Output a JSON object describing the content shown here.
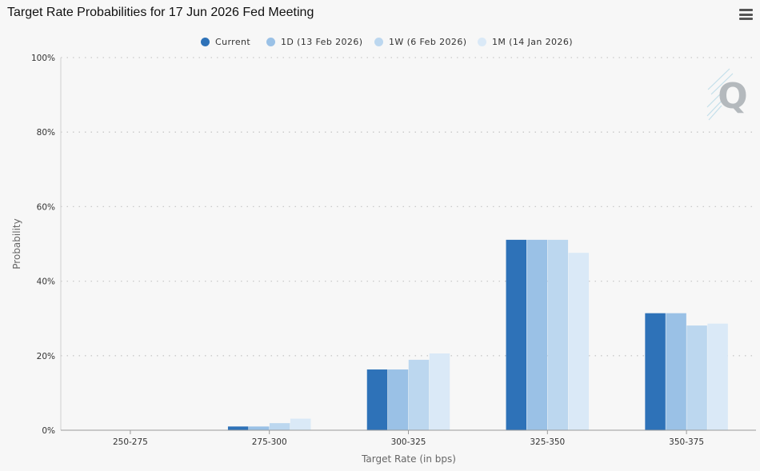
{
  "chart_title": "Target Rate Probabilities for 17 Jun 2026 Fed Meeting",
  "menu_icon": "hamburger-menu-icon",
  "watermark_icon": "q-logo-icon",
  "legend": [
    {
      "label": "Current",
      "color": "#2e72b8"
    },
    {
      "label": "1D (13 Feb 2026)",
      "color": "#9ac1e6"
    },
    {
      "label": "1W (6 Feb 2026)",
      "color": "#bcd7ef"
    },
    {
      "label": "1M (14 Jan 2026)",
      "color": "#dae9f7"
    }
  ],
  "chart_data": {
    "type": "bar",
    "title": "Target Rate Probabilities for 17 Jun 2026 Fed Meeting",
    "xlabel": "Target Rate (in bps)",
    "ylabel": "Probability",
    "ylim": [
      0,
      100
    ],
    "yticks": [
      "0%",
      "20%",
      "40%",
      "60%",
      "80%",
      "100%"
    ],
    "grid": true,
    "legend_position": "top",
    "categories": [
      "250-275",
      "275-300",
      "300-325",
      "325-350",
      "350-375"
    ],
    "series": [
      {
        "name": "Current",
        "color": "#2e72b8",
        "values": [
          0,
          1.0,
          16.3,
          51.1,
          31.4
        ]
      },
      {
        "name": "1D (13 Feb 2026)",
        "color": "#9ac1e6",
        "values": [
          0,
          1.0,
          16.3,
          51.1,
          31.4
        ]
      },
      {
        "name": "1W (6 Feb 2026)",
        "color": "#bcd7ef",
        "values": [
          0,
          1.9,
          18.9,
          51.1,
          28.1
        ]
      },
      {
        "name": "1M (14 Jan 2026)",
        "color": "#dae9f7",
        "values": [
          0,
          3.1,
          20.6,
          47.6,
          28.6
        ]
      }
    ]
  }
}
